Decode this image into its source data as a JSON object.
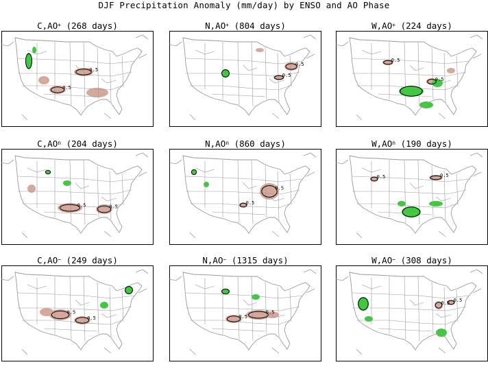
{
  "title": "DJF Precipitation Anomaly (mm/day) by ENSO and AO Phase",
  "colors": {
    "positive_anomaly": "#d4a99b",
    "negative_anomaly": "#40c840",
    "contour": "#000000",
    "map_lines": "#9a9a9a",
    "frame": "#000000"
  },
  "contour_label": "0.5",
  "panels": [
    {
      "enso": "C",
      "ao_sign": "+",
      "days_label": "(268 days)"
    },
    {
      "enso": "N",
      "ao_sign": "+",
      "days_label": "(804 days)"
    },
    {
      "enso": "W",
      "ao_sign": "+",
      "days_label": "(224 days)"
    },
    {
      "enso": "C",
      "ao_sign": "n",
      "days_label": "(204 days)"
    },
    {
      "enso": "N",
      "ao_sign": "n",
      "days_label": "(860 days)"
    },
    {
      "enso": "W",
      "ao_sign": "n",
      "days_label": "(190 days)"
    },
    {
      "enso": "C",
      "ao_sign": "−",
      "days_label": "(249 days)"
    },
    {
      "enso": "N",
      "ao_sign": "−",
      "days_label": "(1315 days)"
    },
    {
      "enso": "W",
      "ao_sign": "−",
      "days_label": "(308 days)"
    }
  ]
}
